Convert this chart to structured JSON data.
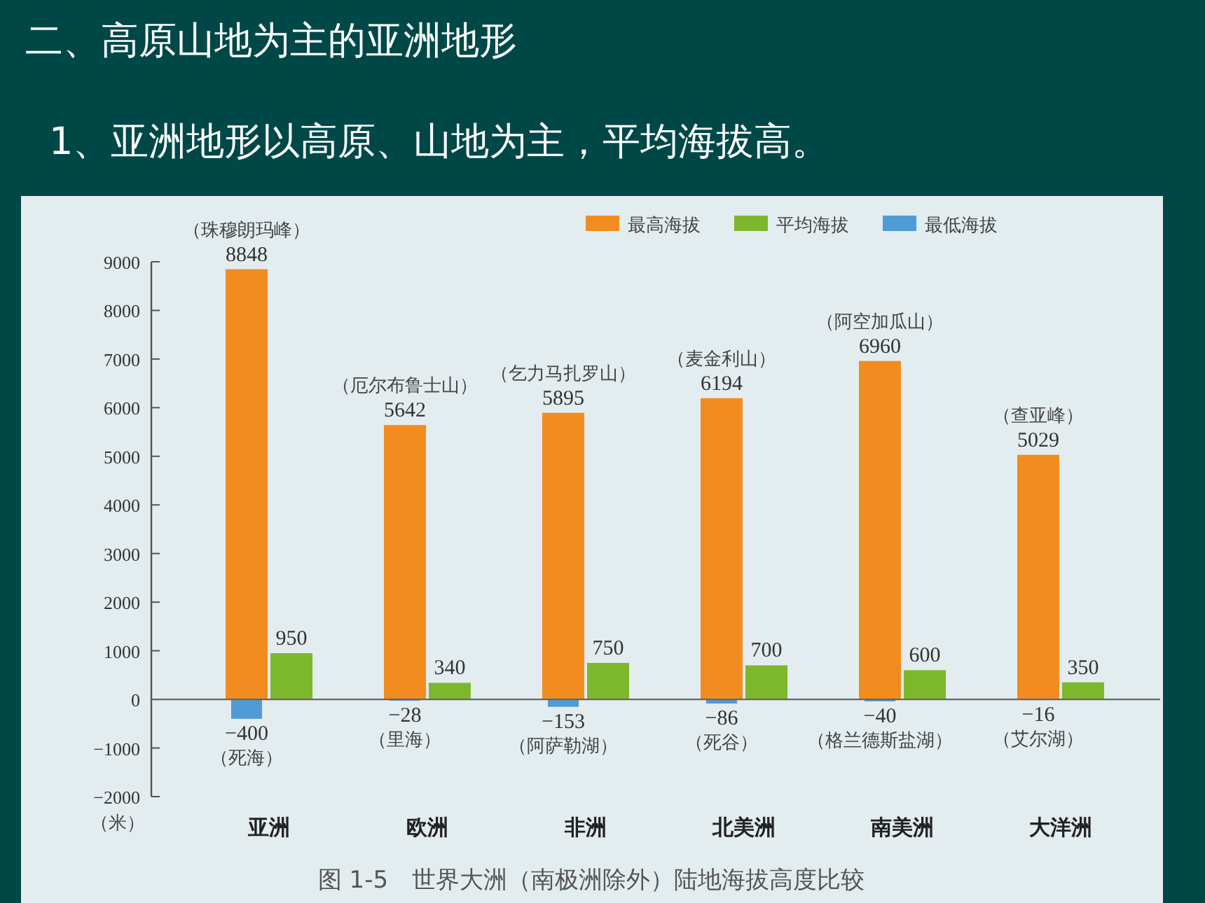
{
  "chart_data": {
    "type": "bar",
    "title": "二、高原山地为主的亚洲地形",
    "subtitle": "1、亚洲地形以高原、山地为主，平均海拔高。",
    "ylabel": "（米）",
    "categories": [
      "亚洲",
      "欧洲",
      "非洲",
      "北美洲",
      "南美洲",
      "大洋洲"
    ],
    "series": [
      {
        "name": "最高海拔",
        "color": "#f28c1e",
        "values": [
          8848,
          5642,
          5895,
          6194,
          6960,
          5029
        ]
      },
      {
        "name": "平均海拔",
        "color": "#7db82c",
        "values": [
          950,
          340,
          750,
          700,
          600,
          350
        ]
      },
      {
        "name": "最低海拔",
        "color": "#4f9bd6",
        "values": [
          -400,
          -28,
          -153,
          -86,
          -40,
          -16
        ]
      }
    ],
    "ylim": [
      -2000,
      9000
    ],
    "yticks": [
      {
        "value": -2000,
        "label": "−2000"
      },
      {
        "value": -1000,
        "label": "−1000"
      },
      0,
      1000,
      2000,
      3000,
      4000,
      5000,
      6000,
      7000,
      8000,
      9000
    ],
    "data_labels": true,
    "legend": "top right",
    "annotations": [
      {
        "text": "（珠穆朗玛峰）",
        "x": "亚洲",
        "y": 8848
      },
      {
        "text": "（厄尔布鲁士山）",
        "x": "欧洲",
        "y": 5642
      },
      {
        "text": "（乞力马扎罗山）",
        "x": "非洲",
        "y": 5895
      },
      {
        "text": "（麦金利山）",
        "x": "北美洲",
        "y": 6194
      },
      {
        "text": "（阿空加瓜山）",
        "x": "南美洲",
        "y": 6960
      },
      {
        "text": "（查亚峰）",
        "x": "大洋洲",
        "y": 5029
      },
      "（死海）",
      "（里海）",
      "（阿萨勒湖）",
      "（死谷）",
      "（格兰德斯盐湖）",
      "（艾尔湖）",
      "图 1-5　世界大洲（南极洲除外）陆地海拔高度比较"
    ]
  }
}
